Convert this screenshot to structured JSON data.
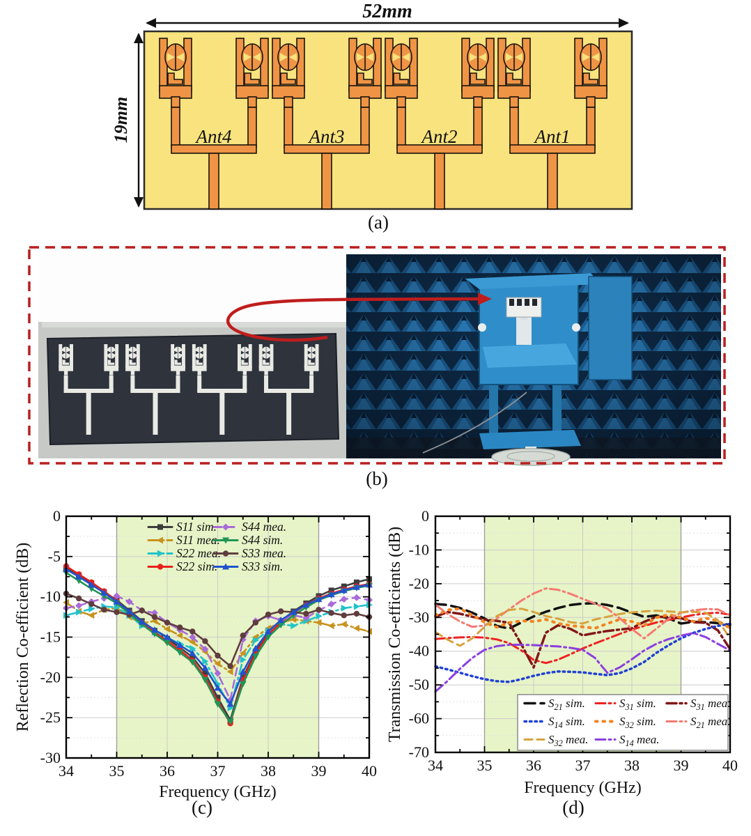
{
  "figure": {
    "panel_a": {
      "caption": "(a)",
      "width_label": "52mm",
      "height_label": "19mm",
      "antennas": [
        "Ant4",
        "Ant3",
        "Ant2",
        "Ant1"
      ],
      "colors": {
        "substrate": "#f8e37e",
        "copper": "#ef9445",
        "outline": "#17120c"
      }
    },
    "panel_b": {
      "caption": "(b)",
      "contents": [
        "fabricated-antenna-photo",
        "anechoic-chamber-measurement-photo"
      ],
      "colors": {
        "dashed_border": "#b91f1f",
        "arrow": "#bf1d1d",
        "absorber_blue": "#1e649c",
        "fixture_blue": "#2f8ec9"
      }
    },
    "panel_c": {
      "caption": "(c)"
    },
    "panel_d": {
      "caption": "(d)"
    }
  },
  "chart_data": [
    {
      "id": "chart-c",
      "type": "line",
      "title": "",
      "xlabel": "Frequency (GHz)",
      "ylabel": "Reflection Co-efficient (dB)",
      "xlim": [
        34,
        40
      ],
      "ylim": [
        -30,
        0
      ],
      "xticks": [
        34,
        35,
        36,
        37,
        38,
        39,
        40
      ],
      "yticks": [
        0,
        -5,
        -10,
        -15,
        -20,
        -25,
        -30
      ],
      "grid": true,
      "band": {
        "x0": 35,
        "x1": 39,
        "color": "#e7f4c7"
      },
      "legend_position": "top-inside",
      "x": [
        34,
        34.25,
        34.5,
        34.75,
        35,
        35.25,
        35.5,
        35.75,
        36,
        36.25,
        36.5,
        36.75,
        37,
        37.25,
        37.5,
        37.75,
        38,
        38.25,
        38.5,
        38.75,
        39,
        39.25,
        39.5,
        39.75,
        40
      ],
      "series": [
        {
          "label": "S11 sim.",
          "color": "#3d3d3d",
          "dash": "solid",
          "marker": "square",
          "values": [
            -6.4,
            -7.3,
            -8.3,
            -9.4,
            -10.4,
            -11.7,
            -13,
            -14.2,
            -15.2,
            -16.3,
            -17.5,
            -19.5,
            -22.5,
            -25.3,
            -20,
            -16.8,
            -14.5,
            -13,
            -11.8,
            -10.8,
            -9.9,
            -9.2,
            -8.7,
            -8.2,
            -7.8
          ]
        },
        {
          "label": "S11 mea.",
          "color": "#c8921e",
          "dash": "dashdot",
          "marker": "tri-left",
          "values": [
            -10.7,
            -11.8,
            -12.3,
            -11.6,
            -11.4,
            -12.5,
            -13.3,
            -13,
            -14,
            -14.8,
            -15.6,
            -16.8,
            -18.3,
            -19.3,
            -17,
            -15,
            -13.9,
            -13.2,
            -12.8,
            -13,
            -13.2,
            -13.6,
            -13.4,
            -13.9,
            -14.3
          ]
        },
        {
          "label": "S22 mea.",
          "color": "#22c3c9",
          "dash": "dashdot",
          "marker": "tri-right",
          "values": [
            -12.3,
            -11.9,
            -11.5,
            -11.2,
            -11.3,
            -12.3,
            -13.6,
            -14.4,
            -15.1,
            -15.8,
            -16.4,
            -18,
            -20.8,
            -23.8,
            -17.8,
            -15.4,
            -14.2,
            -13.4,
            -13.6,
            -13,
            -12.4,
            -11.9,
            -11.4,
            -11.2,
            -11
          ]
        },
        {
          "label": "S22 sim.",
          "color": "#e8201d",
          "dash": "solid",
          "marker": "circle",
          "values": [
            -6.2,
            -7.2,
            -8.2,
            -9.3,
            -10.5,
            -11.9,
            -13.2,
            -14.4,
            -15.5,
            -16.6,
            -17.9,
            -20,
            -23,
            -25.7,
            -20.3,
            -17,
            -14.7,
            -13.2,
            -12,
            -11,
            -10.2,
            -9.6,
            -9.1,
            -8.7,
            -8.4
          ]
        },
        {
          "label": "S44 mea.",
          "color": "#a96bd8",
          "dash": "dash",
          "marker": "diamond",
          "values": [
            -11.4,
            -11.1,
            -10.6,
            -10.2,
            -9.9,
            -10.6,
            -11.7,
            -12,
            -13.2,
            -14.1,
            -15,
            -16.5,
            -19.5,
            -22.8,
            -15.3,
            -13,
            -12.4,
            -12.9,
            -12.3,
            -12.6,
            -11.7,
            -10.9,
            -10.3,
            -10.1,
            -10.4
          ]
        },
        {
          "label": "S44 sim.",
          "color": "#209455",
          "dash": "solid",
          "marker": "tri-down",
          "values": [
            -7,
            -8,
            -9,
            -9.9,
            -10.8,
            -12.1,
            -13.4,
            -14.6,
            -15.7,
            -16.9,
            -18.1,
            -20.3,
            -23.3,
            -25.5,
            -20.8,
            -17.4,
            -15,
            -13.5,
            -12.3,
            -11.3,
            -10.4,
            -9.8,
            -9.3,
            -8.9,
            -8.6
          ]
        },
        {
          "label": "S33 mea.",
          "color": "#5f3d3e",
          "dash": "solid",
          "marker": "circle",
          "values": [
            -9.6,
            -10.2,
            -10.9,
            -11.6,
            -11.9,
            -12.2,
            -11.7,
            -12.5,
            -13.2,
            -13.8,
            -14.3,
            -15.5,
            -17.3,
            -18.6,
            -14.8,
            -13.2,
            -12.2,
            -11.8,
            -11.9,
            -12.1,
            -11.6,
            -12,
            -12.3,
            -12.1,
            -12.5
          ]
        },
        {
          "label": "S33 sim.",
          "color": "#2152ce",
          "dash": "solid",
          "marker": "tri-up",
          "values": [
            -6.6,
            -7.5,
            -8.5,
            -9.5,
            -10.6,
            -11.8,
            -13.1,
            -14.1,
            -15,
            -16,
            -17,
            -18.8,
            -21.3,
            -23.3,
            -19.3,
            -16.4,
            -14.3,
            -12.9,
            -11.9,
            -11,
            -10.3,
            -9.7,
            -9.2,
            -8.8,
            -8.5
          ]
        }
      ]
    },
    {
      "id": "chart-d",
      "type": "line",
      "title": "",
      "xlabel": "Frequency (GHz)",
      "ylabel": "Transmission Co-efficients (dB)",
      "xlim": [
        34,
        40
      ],
      "ylim": [
        -70,
        0
      ],
      "xticks": [
        34,
        35,
        36,
        37,
        38,
        39,
        40
      ],
      "yticks": [
        0,
        -10,
        -20,
        -30,
        -40,
        -50,
        -60,
        -70
      ],
      "grid": true,
      "band": {
        "x0": 35,
        "x1": 39,
        "color": "#e7f4c7"
      },
      "legend_position": "bottom-inside-box",
      "x": [
        34,
        34.25,
        34.5,
        34.75,
        35,
        35.25,
        35.5,
        35.75,
        36,
        36.25,
        36.5,
        36.75,
        37,
        37.25,
        37.5,
        37.75,
        38,
        38.25,
        38.5,
        38.75,
        39,
        39.25,
        39.5,
        39.75,
        40
      ],
      "series": [
        {
          "label": "S21 sim.",
          "base": "S",
          "sub": "21",
          "rest": " sim.",
          "color": "#111111",
          "dash": "longdash",
          "marker": null,
          "width": 3.5,
          "values": [
            -26,
            -26.3,
            -27.2,
            -28.6,
            -30.3,
            -32.5,
            -33.3,
            -31.5,
            -29.7,
            -28.3,
            -27.2,
            -26.3,
            -25.9,
            -25.8,
            -26.3,
            -27.2,
            -28.6,
            -29.8,
            -29.4,
            -30.3,
            -31.8,
            -31.3,
            -31.4,
            -31.7,
            -32.2
          ]
        },
        {
          "label": "S31 sim.",
          "base": "S",
          "sub": "31",
          "rest": " sim.",
          "color": "#ee2222",
          "dash": "dashdot",
          "marker": null,
          "width": 3,
          "values": [
            -36.4,
            -36.1,
            -35.9,
            -35.8,
            -36,
            -36.5,
            -37.6,
            -39.8,
            -42.6,
            -43.5,
            -42.5,
            -40.9,
            -39.2,
            -37.7,
            -36.3,
            -34.9,
            -33.6,
            -32.5,
            -31.5,
            -30.7,
            -30,
            -29.3,
            -28.8,
            -28.6,
            -29.2
          ]
        },
        {
          "label": "S31 mea.",
          "base": "S",
          "sub": "31",
          "rest": " mea.",
          "color": "#801718",
          "dash": "dashdot",
          "marker": null,
          "width": 3.5,
          "values": [
            -29.8,
            -28.4,
            -28.9,
            -29.8,
            -30.6,
            -31,
            -31.6,
            -38,
            -44.8,
            -34.5,
            -32.3,
            -33.4,
            -35.3,
            -34.6,
            -34,
            -33.6,
            -33.2,
            -31.3,
            -29.8,
            -29.9,
            -30.2,
            -31.4,
            -31.6,
            -33.8,
            -39.4
          ]
        },
        {
          "label": "S14 sim.",
          "base": "S",
          "sub": "14",
          "rest": " sim.",
          "color": "#2141d6",
          "dash": "dot",
          "marker": null,
          "width": 3.5,
          "values": [
            -44.5,
            -45.4,
            -46.4,
            -47.4,
            -48.3,
            -48.9,
            -49.1,
            -48.3,
            -47.3,
            -46.5,
            -46,
            -46.1,
            -46.3,
            -46.7,
            -47.1,
            -46.5,
            -45.1,
            -43.2,
            -40.5,
            -38.2,
            -36.2,
            -34.6,
            -33.4,
            -32.5,
            -31.9
          ]
        },
        {
          "label": "S32 sim.",
          "base": "S",
          "sub": "32",
          "rest": " sim.",
          "color": "#f5821f",
          "dash": "dot2",
          "marker": null,
          "width": 4,
          "values": [
            -29.4,
            -27.8,
            -27.4,
            -29.3,
            -31.4,
            -32.9,
            -31.6,
            -31,
            -31.2,
            -30.6,
            -31.8,
            -32.4,
            -32.8,
            -33.2,
            -31.8,
            -30.6,
            -31.2,
            -32.4,
            -30,
            -29.2,
            -30,
            -31.2,
            -30.2,
            -31,
            -33.2
          ]
        },
        {
          "label": "S21 mea.",
          "base": "S",
          "sub": "21",
          "rest": " mea.",
          "color": "#f47a72",
          "dash": "dashdot",
          "marker": null,
          "width": 3,
          "values": [
            -26.2,
            -29,
            -31.2,
            -32.8,
            -32.4,
            -30.3,
            -27.6,
            -25,
            -22.9,
            -21.4,
            -21.8,
            -23,
            -24.5,
            -25.9,
            -27.4,
            -30.2,
            -33.4,
            -36.2,
            -33.3,
            -30.4,
            -28.6,
            -27.9,
            -27.5,
            -27.6,
            -29.4
          ]
        },
        {
          "label": "S32 mea.",
          "base": "S",
          "sub": "32",
          "rest": " mea.",
          "color": "#d7a33e",
          "dash": "dash",
          "marker": null,
          "width": 3,
          "values": [
            -34.3,
            -36.6,
            -38.4,
            -36.2,
            -32.8,
            -29.6,
            -27.8,
            -27.4,
            -28.4,
            -29.6,
            -30.4,
            -31.4,
            -31.8,
            -30.6,
            -29.8,
            -29,
            -28.5,
            -28.2,
            -28,
            -28.2,
            -28.5,
            -28.3,
            -28.6,
            -30.8,
            -36.2
          ]
        },
        {
          "label": "S14 mea.",
          "base": "S",
          "sub": "14",
          "rest": " mea.",
          "color": "#8b3fe0",
          "dash": "dashdot",
          "marker": null,
          "width": 3,
          "values": [
            -52,
            -48.8,
            -45.2,
            -42,
            -39.6,
            -38.5,
            -38.1,
            -38.1,
            -38.2,
            -38.4,
            -38.6,
            -39,
            -39.6,
            -42,
            -46.4,
            -44.8,
            -42.4,
            -39.8,
            -37.8,
            -36.4,
            -35.4,
            -34.6,
            -35.8,
            -37.8,
            -39.8
          ]
        }
      ]
    }
  ]
}
